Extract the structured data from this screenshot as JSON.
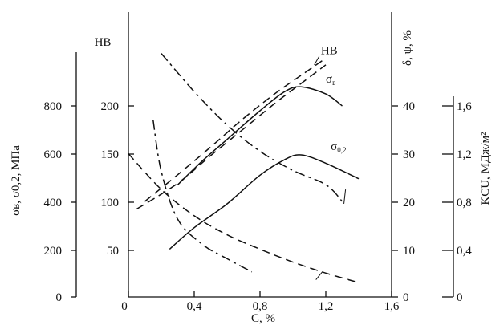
{
  "chart_data": {
    "type": "line",
    "xlabel": "C, %",
    "x_ticks": [
      "0",
      "0,4",
      "0,8",
      "1,2",
      "1,6"
    ],
    "xlim": [
      0,
      1.6
    ],
    "axes": {
      "stress": {
        "title": "σв, σ0,2, МПа",
        "ticks": [
          "0",
          "200",
          "400",
          "600",
          "800"
        ],
        "range": [
          0,
          800
        ]
      },
      "hb": {
        "title": "HB",
        "ticks": [
          "50",
          "100",
          "150",
          "200"
        ],
        "range": [
          0,
          250
        ]
      },
      "elong": {
        "title": "δ, ψ, %",
        "ticks": [
          "0",
          "10",
          "20",
          "30",
          "40"
        ],
        "range": [
          0,
          45
        ]
      },
      "ksu": {
        "title": "KCU, МДж/м²",
        "ticks": [
          "0",
          "0,4",
          "0,8",
          "1,2",
          "1,6"
        ],
        "range": [
          0,
          1.6
        ]
      }
    },
    "series": [
      {
        "name": "HB",
        "axis": "hb",
        "style": "dashed",
        "label_at": [
          1.17,
          254
        ],
        "x": [
          0.1,
          0.3,
          0.5,
          0.7,
          0.9,
          1.1,
          1.2
        ],
        "y": [
          100,
          128,
          157,
          187,
          214,
          238,
          250
        ]
      },
      {
        "name": "σв",
        "axis": "stress",
        "style": "solid",
        "label_at": [
          1.2,
          897
        ],
        "x": [
          0.3,
          0.45,
          0.6,
          0.8,
          0.95,
          1.05,
          1.2,
          1.3
        ],
        "y": [
          470,
          570,
          660,
          780,
          860,
          880,
          850,
          800
        ]
      },
      {
        "name": "σ0,2",
        "axis": "stress",
        "style": "solid",
        "label_at": [
          1.23,
          615
        ],
        "x": [
          0.25,
          0.4,
          0.6,
          0.8,
          0.95,
          1.05,
          1.2,
          1.4
        ],
        "y": [
          200,
          290,
          390,
          510,
          575,
          595,
          560,
          495
        ]
      },
      {
        "name": "ψ",
        "axis": "elong",
        "style": "dashdot",
        "label_at": [
          1.28,
          386
        ],
        "x": [
          0.2,
          0.4,
          0.6,
          0.8,
          1.0,
          1.2,
          1.3
        ],
        "y": [
          51,
          43,
          36,
          30.5,
          26.5,
          23.5,
          20
        ]
      },
      {
        "name": "δ",
        "axis": "elong",
        "style": "dashed",
        "label_at": [
          1.2,
          181
        ],
        "x": [
          0,
          0.2,
          0.4,
          0.6,
          0.8,
          1.0,
          1.2,
          1.4
        ],
        "y": [
          30,
          22.5,
          17,
          13,
          10,
          7.3,
          5,
          3
        ]
      },
      {
        "name": "KCU",
        "axis": "ksu",
        "style": "dashdot",
        "label_at": [
          0.45,
          147
        ],
        "x": [
          0.15,
          0.2,
          0.3,
          0.45,
          0.6,
          0.75
        ],
        "y": [
          1.48,
          1.05,
          0.65,
          0.44,
          0.32,
          0.21
        ]
      },
      {
        "name": "",
        "axis": "hb",
        "style": "dashed",
        "x": [
          0.05,
          0.3,
          0.5,
          0.7,
          0.9,
          1.1,
          1.2
        ],
        "y": [
          92,
          119,
          148,
          176,
          204,
          230,
          243
        ]
      }
    ]
  }
}
